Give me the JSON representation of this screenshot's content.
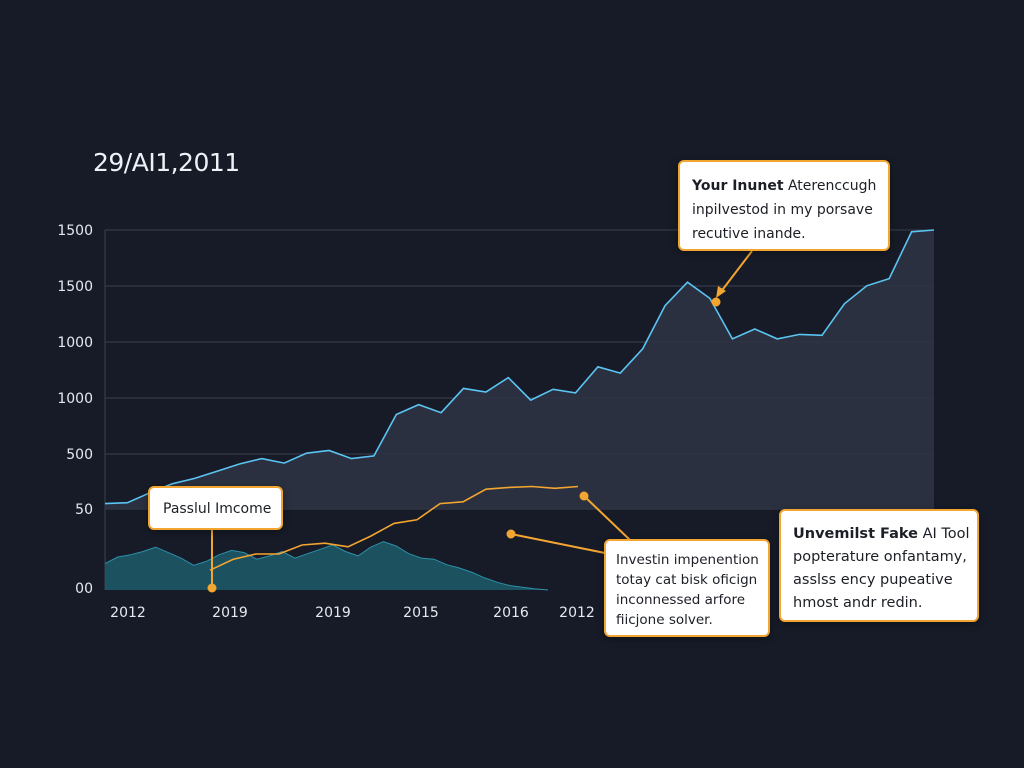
{
  "title": "29/AI1,2011",
  "colors": {
    "background": "#161b27",
    "main_line": "#5bc4f2",
    "main_fill": "#2c3342",
    "income_line": "#f3a531",
    "lower_fill": "#1d5a6b",
    "lower_line": "#2c90a8",
    "grid": "#394150",
    "tick_text": "#e6e9ef",
    "callout_border": "#f3a531",
    "marker": "#f3a531"
  },
  "chart_data": {
    "type": "area",
    "title": "29/AI1,2011",
    "xlabel": "",
    "ylabel": "",
    "y_tick_labels": [
      "1500",
      "1500",
      "1000",
      "1000",
      "500",
      "50",
      "00"
    ],
    "x_tick_labels": [
      "2012",
      "2019",
      "2019",
      "2015",
      "2016",
      "2012"
    ],
    "grid": "horizontal",
    "series": [
      {
        "kind": "area-line",
        "values": [
          480,
          485,
          540,
          590,
          620,
          660,
          700,
          730,
          705,
          760,
          775,
          730,
          745,
          975,
          1030,
          985,
          1120,
          1100,
          1180,
          1055,
          1115,
          1095,
          1240,
          1205,
          1340,
          1580,
          1710,
          1620,
          1395,
          1450,
          1395,
          1420,
          1415,
          1590,
          1690,
          1730,
          1990,
          2000
        ]
      },
      {
        "kind": "line",
        "values": [
          110,
          170,
          200,
          200,
          250,
          260,
          240,
          300,
          370,
          390,
          480,
          490,
          560,
          570,
          575,
          565,
          575
        ]
      },
      {
        "kind": "area",
        "values": [
          48,
          60,
          64,
          70,
          78,
          68,
          58,
          45,
          52,
          64,
          72,
          68,
          56,
          62,
          70,
          58,
          66,
          74,
          82,
          70,
          62,
          78,
          88,
          80,
          66,
          58,
          56,
          46,
          40,
          32,
          22,
          14,
          8,
          5,
          2,
          0
        ]
      }
    ]
  },
  "callouts": {
    "top_right": {
      "bold": "Your Inunet",
      "rest": " Aterenccugh",
      "line2": "inpiIvestod in my porsave",
      "line3": "recutive inande."
    },
    "passive": {
      "label": "Passlul Imcome"
    },
    "middle": {
      "lines": [
        "Investin impenention",
        "totay cat bisk oficign",
        "inconnessed arfore",
        "fiicjone solver."
      ]
    },
    "right": {
      "bold": "Unvemilst Fake",
      "rest": " AI Tool",
      "lines": [
        "popterature onfantamy,",
        "asslss ency pupeative",
        "hmost andr redin."
      ]
    }
  }
}
